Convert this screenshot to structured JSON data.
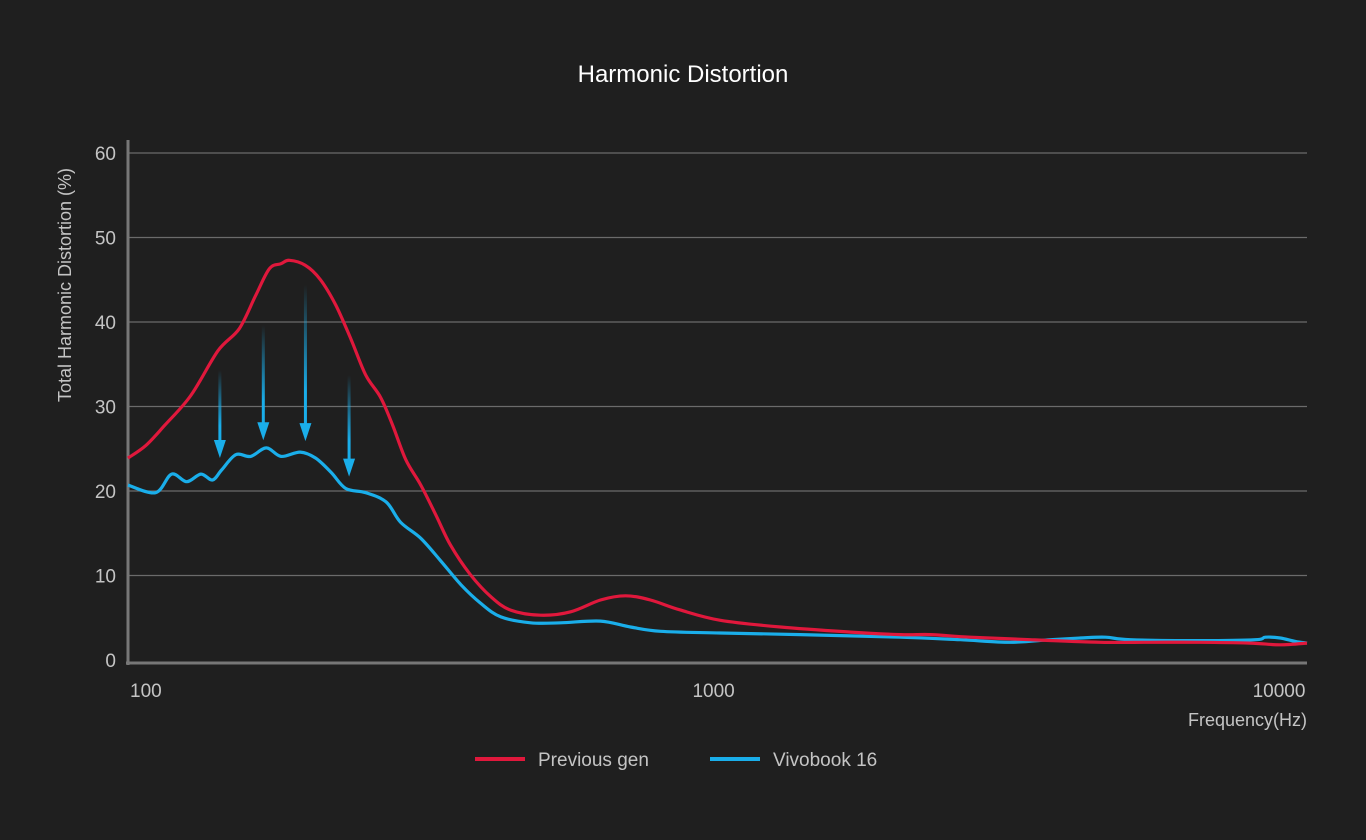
{
  "chart_data": {
    "type": "line",
    "title": "Harmonic Distortion",
    "xlabel": "Frequency(Hz)",
    "ylabel": "Total Harmonic Distortion (%)",
    "xscale": "log",
    "xlim": [
      93,
      11100
    ],
    "ylim": [
      0,
      60
    ],
    "xticks": [
      100,
      1000,
      10000
    ],
    "xtick_labels": [
      "100",
      "1000",
      "10000"
    ],
    "yticks": [
      0,
      10,
      20,
      30,
      40,
      50,
      60
    ],
    "ytick_labels": [
      "0",
      "10",
      "20",
      "30",
      "40",
      "50",
      "60"
    ],
    "grid": "horizontal",
    "legend_position": "bottom-center",
    "series": [
      {
        "name": "Previous gen",
        "color": "#e0183c",
        "x": [
          93,
          100,
          108,
          120,
          134,
          146,
          156,
          165,
          173,
          179,
          191,
          203,
          216,
          230,
          244,
          259,
          272,
          287,
          305,
          324,
          344,
          373,
          405,
          439,
          496,
          560,
          632,
          700,
          774,
          875,
          1028,
          1312,
          1742,
          2134,
          2410,
          2835,
          3614,
          4800,
          5875,
          7195,
          8810,
          9955,
          11100
        ],
        "y": [
          23.9,
          25.4,
          27.8,
          31.3,
          36.6,
          39.2,
          43.1,
          46.3,
          46.9,
          47.3,
          46.7,
          45.0,
          42.0,
          37.9,
          33.7,
          31.1,
          27.8,
          23.7,
          20.7,
          17.2,
          13.6,
          10.1,
          7.5,
          5.9,
          5.3,
          5.7,
          7.1,
          7.6,
          7.1,
          5.9,
          4.7,
          3.9,
          3.3,
          3.0,
          3.0,
          2.7,
          2.4,
          2.1,
          2.1,
          2.1,
          2.0,
          1.8,
          2.0
        ]
      },
      {
        "name": "Vivobook 16",
        "color": "#1aaeea",
        "x": [
          93,
          104,
          111,
          118,
          125,
          131,
          136,
          144,
          153,
          163,
          173,
          187,
          199,
          212,
          225,
          244,
          265,
          281,
          305,
          330,
          359,
          389,
          422,
          476,
          538,
          632,
          714,
          807,
          1028,
          1422,
          2134,
          2721,
          3334,
          3920,
          4426,
          4900,
          5420,
          7195,
          9000,
          9375,
          9955,
          10590,
          11100
        ],
        "y": [
          20.7,
          19.8,
          22.0,
          21.1,
          22.0,
          21.3,
          22.5,
          24.3,
          24.1,
          25.1,
          24.1,
          24.6,
          23.9,
          22.2,
          20.3,
          19.8,
          18.7,
          16.3,
          14.4,
          11.8,
          8.9,
          6.7,
          5.1,
          4.4,
          4.4,
          4.6,
          3.9,
          3.4,
          3.2,
          3.0,
          2.7,
          2.4,
          2.1,
          2.4,
          2.6,
          2.7,
          2.4,
          2.3,
          2.4,
          2.7,
          2.6,
          2.2,
          2.0
        ]
      }
    ],
    "annotations": [
      {
        "type": "arrow-down",
        "x": 135,
        "from": 34.3,
        "to": 23.9
      },
      {
        "type": "arrow-down",
        "x": 161,
        "from": 39.6,
        "to": 26.0
      },
      {
        "type": "arrow-down",
        "x": 191,
        "from": 44.4,
        "to": 25.9
      },
      {
        "type": "arrow-down",
        "x": 228,
        "from": 33.7,
        "to": 21.7
      }
    ]
  }
}
